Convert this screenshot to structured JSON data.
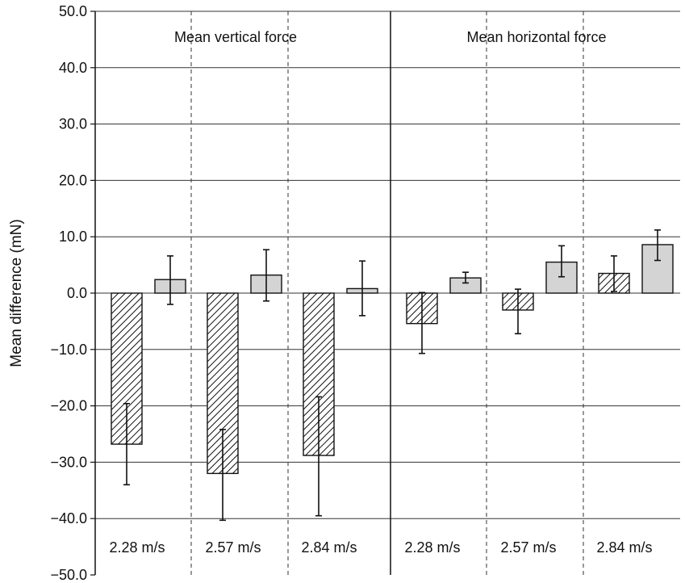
{
  "chart_data": {
    "type": "bar",
    "ylabel": "Mean difference (mN)",
    "ylim": [
      -50,
      50
    ],
    "yticks": [
      "50.0",
      "40.0",
      "30.0",
      "20.0",
      "10.0",
      "0.0",
      "−10.0",
      "−20.0",
      "−30.0",
      "−40.0",
      "−50.0"
    ],
    "ytick_values": [
      50,
      40,
      30,
      20,
      10,
      0,
      -10,
      -20,
      -30,
      -40,
      -50
    ],
    "grid": true,
    "legend": "none",
    "colors": {
      "hatched": "#ffffff",
      "solid": "#d4d4d4",
      "line": "#111111"
    },
    "panels": [
      {
        "title": "Mean vertical force",
        "categories": [
          "2.28 m/s",
          "2.57 m/s",
          "2.84 m/s"
        ],
        "series": [
          {
            "style": "hatched",
            "values": [
              -26.8,
              -32.0,
              -28.8
            ],
            "err_low": [
              -34.0,
              -40.3,
              -39.5
            ],
            "err_high": [
              -19.6,
              -24.2,
              -18.4
            ]
          },
          {
            "style": "solid",
            "values": [
              2.4,
              3.2,
              0.8
            ],
            "err_low": [
              -2.0,
              -1.4,
              -4.0
            ],
            "err_high": [
              6.6,
              7.7,
              5.7
            ]
          }
        ]
      },
      {
        "title": "Mean horizontal force",
        "categories": [
          "2.28 m/s",
          "2.57 m/s",
          "2.84 m/s"
        ],
        "series": [
          {
            "style": "hatched",
            "values": [
              -5.4,
              -3.0,
              3.5
            ],
            "err_low": [
              -10.7,
              -7.2,
              0.3
            ],
            "err_high": [
              0.1,
              0.7,
              6.6
            ]
          },
          {
            "style": "solid",
            "values": [
              2.7,
              5.5,
              8.6
            ],
            "err_low": [
              1.8,
              2.9,
              5.8
            ],
            "err_high": [
              3.7,
              8.4,
              11.2
            ]
          }
        ]
      }
    ]
  }
}
